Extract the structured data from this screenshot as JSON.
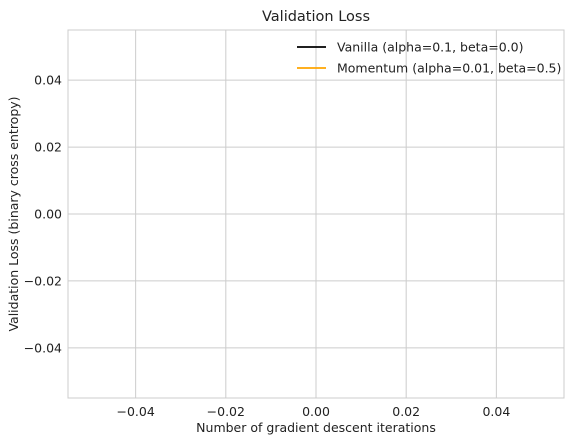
{
  "chart_data": {
    "type": "line",
    "title": "Validation Loss",
    "xlabel": "Number of gradient descent iterations",
    "ylabel": "Validation Loss (binary cross entropy)",
    "xlim": [
      -0.055,
      0.055
    ],
    "ylim": [
      -0.055,
      0.055
    ],
    "xticks": [
      -0.04,
      -0.02,
      0.0,
      0.02,
      0.04
    ],
    "yticks": [
      -0.04,
      -0.02,
      0.0,
      0.02,
      0.04
    ],
    "xtick_labels": [
      "−0.04",
      "−0.02",
      "0.00",
      "0.02",
      "0.04"
    ],
    "ytick_labels": [
      "−0.04",
      "−0.02",
      "0.00",
      "0.02",
      "0.04"
    ],
    "grid": true,
    "legend_position": "top-right",
    "series": [
      {
        "name": "Vanilla (alpha=0.1, beta=0.0)",
        "color": "#000000",
        "x": [],
        "y": []
      },
      {
        "name": "Momentum (alpha=0.01, beta=0.5)",
        "color": "#ffa500",
        "x": [],
        "y": []
      }
    ]
  }
}
